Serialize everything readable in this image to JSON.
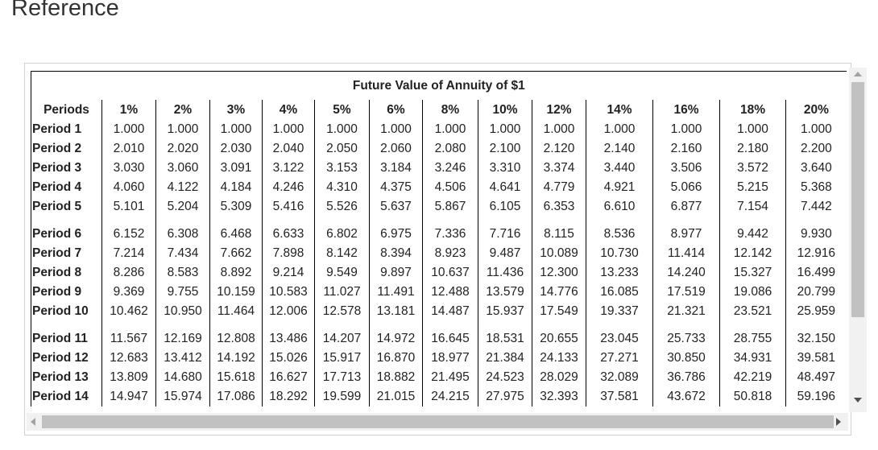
{
  "header": {
    "title": "Reference"
  },
  "table": {
    "title": "Future Value of Annuity of $1",
    "columns": [
      "Periods",
      "1%",
      "2%",
      "3%",
      "4%",
      "5%",
      "6%",
      "8%",
      "10%",
      "12%",
      "14%",
      "16%",
      "18%",
      "20%"
    ],
    "rows": [
      [
        "Period 1",
        "1.000",
        "1.000",
        "1.000",
        "1.000",
        "1.000",
        "1.000",
        "1.000",
        "1.000",
        "1.000",
        "1.000",
        "1.000",
        "1.000",
        "1.000"
      ],
      [
        "Period 2",
        "2.010",
        "2.020",
        "2.030",
        "2.040",
        "2.050",
        "2.060",
        "2.080",
        "2.100",
        "2.120",
        "2.140",
        "2.160",
        "2.180",
        "2.200"
      ],
      [
        "Period 3",
        "3.030",
        "3.060",
        "3.091",
        "3.122",
        "3.153",
        "3.184",
        "3.246",
        "3.310",
        "3.374",
        "3.440",
        "3.506",
        "3.572",
        "3.640"
      ],
      [
        "Period 4",
        "4.060",
        "4.122",
        "4.184",
        "4.246",
        "4.310",
        "4.375",
        "4.506",
        "4.641",
        "4.779",
        "4.921",
        "5.066",
        "5.215",
        "5.368"
      ],
      [
        "Period 5",
        "5.101",
        "5.204",
        "5.309",
        "5.416",
        "5.526",
        "5.637",
        "5.867",
        "6.105",
        "6.353",
        "6.610",
        "6.877",
        "7.154",
        "7.442"
      ],
      [
        "Period 6",
        "6.152",
        "6.308",
        "6.468",
        "6.633",
        "6.802",
        "6.975",
        "7.336",
        "7.716",
        "8.115",
        "8.536",
        "8.977",
        "9.442",
        "9.930"
      ],
      [
        "Period 7",
        "7.214",
        "7.434",
        "7.662",
        "7.898",
        "8.142",
        "8.394",
        "8.923",
        "9.487",
        "10.089",
        "10.730",
        "11.414",
        "12.142",
        "12.916"
      ],
      [
        "Period 8",
        "8.286",
        "8.583",
        "8.892",
        "9.214",
        "9.549",
        "9.897",
        "10.637",
        "11.436",
        "12.300",
        "13.233",
        "14.240",
        "15.327",
        "16.499"
      ],
      [
        "Period 9",
        "9.369",
        "9.755",
        "10.159",
        "10.583",
        "11.027",
        "11.491",
        "12.488",
        "13.579",
        "14.776",
        "16.085",
        "17.519",
        "19.086",
        "20.799"
      ],
      [
        "Period 10",
        "10.462",
        "10.950",
        "11.464",
        "12.006",
        "12.578",
        "13.181",
        "14.487",
        "15.937",
        "17.549",
        "19.337",
        "21.321",
        "23.521",
        "25.959"
      ],
      [
        "Period 11",
        "11.567",
        "12.169",
        "12.808",
        "13.486",
        "14.207",
        "14.972",
        "16.645",
        "18.531",
        "20.655",
        "23.045",
        "25.733",
        "28.755",
        "32.150"
      ],
      [
        "Period 12",
        "12.683",
        "13.412",
        "14.192",
        "15.026",
        "15.917",
        "16.870",
        "18.977",
        "21.384",
        "24.133",
        "27.271",
        "30.850",
        "34.931",
        "39.581"
      ],
      [
        "Period 13",
        "13.809",
        "14.680",
        "15.618",
        "16.627",
        "17.713",
        "18.882",
        "21.495",
        "24.523",
        "28.029",
        "32.089",
        "36.786",
        "42.219",
        "48.497"
      ],
      [
        "Period 14",
        "14.947",
        "15.974",
        "17.086",
        "18.292",
        "19.599",
        "21.015",
        "24.215",
        "27.975",
        "32.393",
        "37.581",
        "43.672",
        "50.818",
        "59.196"
      ]
    ]
  }
}
